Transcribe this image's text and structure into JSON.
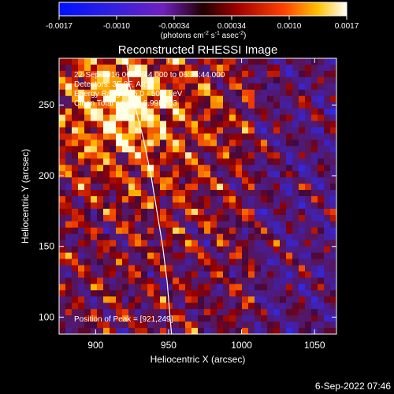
{
  "chart_data": {
    "type": "heatmap",
    "title": "Reconstructed RHESSI Image",
    "xlabel": "Heliocentric X (arcsec)",
    "ylabel": "Heliocentric Y (arcsec)",
    "xlim": [
      875,
      1065
    ],
    "ylim": [
      88,
      283
    ],
    "x_ticks": [
      900,
      950,
      1000,
      1050
    ],
    "y_ticks": [
      100,
      150,
      200,
      250
    ],
    "colorbar": {
      "range": [
        -0.0017,
        0.0017
      ],
      "ticks": [
        "-0.0017",
        "-0.0010",
        "-0.00034",
        "0.00034",
        "0.0010",
        "0.0017"
      ],
      "label": "(photons cm",
      "label_sup1": "-2",
      "label_mid": " s",
      "label_sup2": "-1",
      "label_end": " asec",
      "label_sup3": "-2",
      "label_close": ")"
    },
    "info": {
      "time": "22-Sep-2016 06:29:44.000 to 06:35:44.000",
      "detectors": "Detectors: 3F 8F, Att 0",
      "energy": "Energy Range: 25.0 - 50.0 keV",
      "clean": "Clean    Total counts: 6.99E+03",
      "peak": "Position of Peak = [921,249]"
    },
    "peak": [
      921,
      249
    ],
    "limb_curve": [
      [
        921,
        283
      ],
      [
        923,
        265
      ],
      [
        928,
        245
      ],
      [
        933,
        225
      ],
      [
        938,
        200
      ],
      [
        942,
        175
      ],
      [
        946,
        150
      ],
      [
        949,
        125
      ],
      [
        951,
        100
      ],
      [
        952,
        88
      ]
    ],
    "grid": false
  },
  "footer": {
    "date": "6-Sep-2022 07:46"
  }
}
